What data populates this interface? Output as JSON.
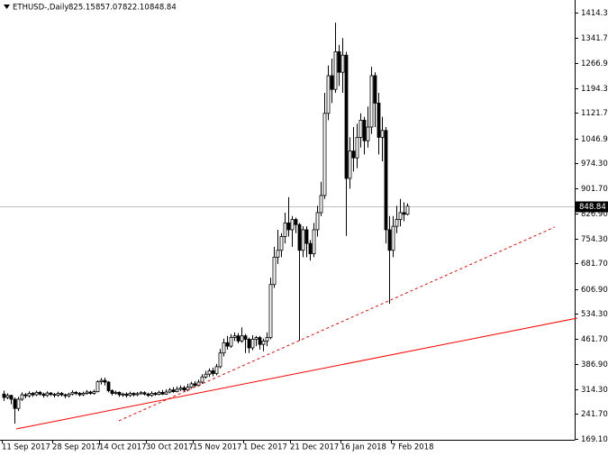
{
  "chart_data": {
    "type": "candlestick",
    "header": {
      "symbol": "ETHUSD-,Daily",
      "ohlc_labels": [
        "825.15",
        "857.07",
        "822.10",
        "848.84"
      ]
    },
    "categories": [
      "11 Sep 2017",
      null,
      null,
      null,
      null,
      null,
      null,
      null,
      null,
      null,
      null,
      null,
      null,
      null,
      "28 Sep 2017",
      null,
      null,
      null,
      null,
      null,
      null,
      null,
      null,
      null,
      null,
      null,
      null,
      "14 Oct 2017",
      null,
      null,
      null,
      null,
      null,
      null,
      null,
      null,
      null,
      null,
      null,
      null,
      "30 Oct 2017",
      null,
      null,
      null,
      null,
      null,
      null,
      null,
      null,
      null,
      null,
      null,
      null,
      "15 Nov 2017",
      null,
      null,
      null,
      null,
      null,
      null,
      null,
      null,
      null,
      null,
      null,
      null,
      null,
      "1 Dec 2017",
      null,
      null,
      null,
      null,
      null,
      null,
      null,
      null,
      null,
      null,
      null,
      null,
      "21 Dec 2017",
      null,
      null,
      null,
      null,
      null,
      null,
      null,
      null,
      null,
      null,
      null,
      null,
      null,
      "16 Jan 2018",
      null,
      null,
      null,
      null,
      null,
      null,
      null,
      null,
      null,
      null,
      null,
      null,
      null,
      "7 Feb 2018",
      null,
      null,
      null,
      null
    ],
    "open": [
      300,
      290,
      296,
      285,
      258,
      285,
      298,
      295,
      302,
      298,
      305,
      300,
      296,
      303,
      299,
      297,
      302,
      298,
      295,
      300,
      305,
      302,
      298,
      302,
      306,
      302,
      307,
      336,
      340,
      335,
      310,
      302,
      305,
      298,
      300,
      296,
      302,
      298,
      301,
      304,
      300,
      296,
      302,
      299,
      305,
      300,
      306,
      312,
      307,
      314,
      318,
      312,
      320,
      330,
      325,
      335,
      350,
      358,
      368,
      360,
      380,
      420,
      450,
      440,
      465,
      470,
      455,
      470,
      460,
      435,
      460,
      465,
      445,
      455,
      465,
      620,
      700,
      720,
      760,
      800,
      780,
      810,
      795,
      720,
      780,
      740,
      710,
      780,
      830,
      880,
      1120,
      1230,
      1190,
      1300,
      1240,
      1290,
      930,
      1010,
      990,
      1050,
      1100,
      1040,
      1080,
      1230,
      1150,
      1050,
      1070,
      780,
      720,
      790,
      810,
      830,
      825.15
    ],
    "high": [
      310,
      302,
      298,
      290,
      292,
      305,
      303,
      308,
      306,
      310,
      309,
      304,
      308,
      306,
      303,
      307,
      306,
      301,
      304,
      311,
      309,
      306,
      307,
      312,
      310,
      313,
      340,
      347,
      348,
      338,
      314,
      310,
      308,
      304,
      305,
      307,
      305,
      306,
      309,
      308,
      304,
      308,
      306,
      310,
      312,
      314,
      318,
      320,
      322,
      325,
      324,
      330,
      336,
      338,
      342,
      358,
      368,
      375,
      377,
      388,
      432,
      462,
      470,
      475,
      480,
      478,
      495,
      475,
      465,
      472,
      470,
      470,
      462,
      480,
      640,
      730,
      780,
      770,
      830,
      875,
      820,
      815,
      800,
      790,
      790,
      750,
      800,
      850,
      920,
      1180,
      1260,
      1280,
      1385,
      1320,
      1340,
      1300,
      1050,
      1080,
      1090,
      1120,
      1110,
      1140,
      1256,
      1240,
      1180,
      1110,
      1080,
      820,
      820,
      850,
      870,
      860,
      857.07
    ],
    "low": [
      280,
      285,
      270,
      214,
      250,
      280,
      288,
      290,
      292,
      294,
      295,
      290,
      292,
      294,
      290,
      292,
      293,
      288,
      290,
      296,
      297,
      293,
      294,
      298,
      298,
      298,
      305,
      328,
      325,
      305,
      296,
      298,
      292,
      292,
      290,
      292,
      293,
      294,
      298,
      296,
      292,
      292,
      295,
      296,
      297,
      298,
      302,
      304,
      305,
      309,
      307,
      308,
      316,
      320,
      322,
      330,
      345,
      350,
      352,
      355,
      375,
      410,
      430,
      435,
      455,
      448,
      450,
      420,
      420,
      428,
      440,
      430,
      425,
      440,
      460,
      610,
      680,
      700,
      740,
      760,
      730,
      770,
      456,
      700,
      700,
      690,
      700,
      760,
      820,
      870,
      1100,
      1150,
      1180,
      1200,
      1180,
      762,
      900,
      950,
      960,
      1020,
      1000,
      1020,
      1060,
      1080,
      1000,
      980,
      740,
      564,
      700,
      770,
      790,
      805,
      822.1
    ],
    "close": [
      290,
      296,
      285,
      258,
      285,
      298,
      295,
      302,
      298,
      305,
      300,
      296,
      303,
      299,
      297,
      302,
      298,
      295,
      300,
      305,
      302,
      298,
      302,
      306,
      302,
      307,
      336,
      340,
      335,
      310,
      302,
      305,
      298,
      300,
      296,
      302,
      298,
      301,
      304,
      300,
      296,
      302,
      299,
      305,
      300,
      306,
      312,
      307,
      314,
      318,
      312,
      320,
      330,
      325,
      335,
      350,
      358,
      368,
      360,
      380,
      420,
      450,
      440,
      465,
      470,
      455,
      470,
      460,
      435,
      460,
      465,
      445,
      455,
      465,
      620,
      700,
      720,
      760,
      800,
      780,
      810,
      795,
      720,
      780,
      740,
      710,
      780,
      830,
      880,
      1120,
      1230,
      1190,
      1300,
      1240,
      1290,
      930,
      1010,
      990,
      1050,
      1100,
      1040,
      1080,
      1230,
      1150,
      1050,
      1070,
      780,
      720,
      790,
      810,
      830,
      825.15,
      848.84
    ],
    "color": "#000000",
    "last_price": 848.84,
    "ylim": [
      169.1,
      1414.3
    ],
    "yticks": [
      {
        "value": 1414.3,
        "label": "1414.30"
      },
      {
        "value": 1341.7,
        "label": "1341.70"
      },
      {
        "value": 1266.9,
        "label": "1266.90"
      },
      {
        "value": 1194.3,
        "label": "1194.30"
      },
      {
        "value": 1121.7,
        "label": "1121.70"
      },
      {
        "value": 1046.9,
        "label": "1046.90"
      },
      {
        "value": 974.3,
        "label": "974.30"
      },
      {
        "value": 901.7,
        "label": "901.70"
      },
      {
        "value": 826.9,
        "label": "826.90"
      },
      {
        "value": 754.3,
        "label": "754.30"
      },
      {
        "value": 681.7,
        "label": "681.70"
      },
      {
        "value": 606.9,
        "label": "606.90"
      },
      {
        "value": 534.3,
        "label": "534.30"
      },
      {
        "value": 461.7,
        "label": "461.70"
      },
      {
        "value": 386.9,
        "label": "386.90"
      },
      {
        "value": 314.3,
        "label": "314.30"
      },
      {
        "value": 241.7,
        "label": "241.70"
      },
      {
        "value": 169.1,
        "label": "169.10"
      }
    ],
    "trendlines": [
      {
        "color": "#ff0000",
        "dashed": false,
        "start": [
          3.5,
          198
        ],
        "end": [
          159.25,
          522
        ]
      },
      {
        "color": "#ff0000",
        "dashed": true,
        "start": [
          32,
          222
        ],
        "end": [
          153,
          788
        ]
      }
    ]
  }
}
